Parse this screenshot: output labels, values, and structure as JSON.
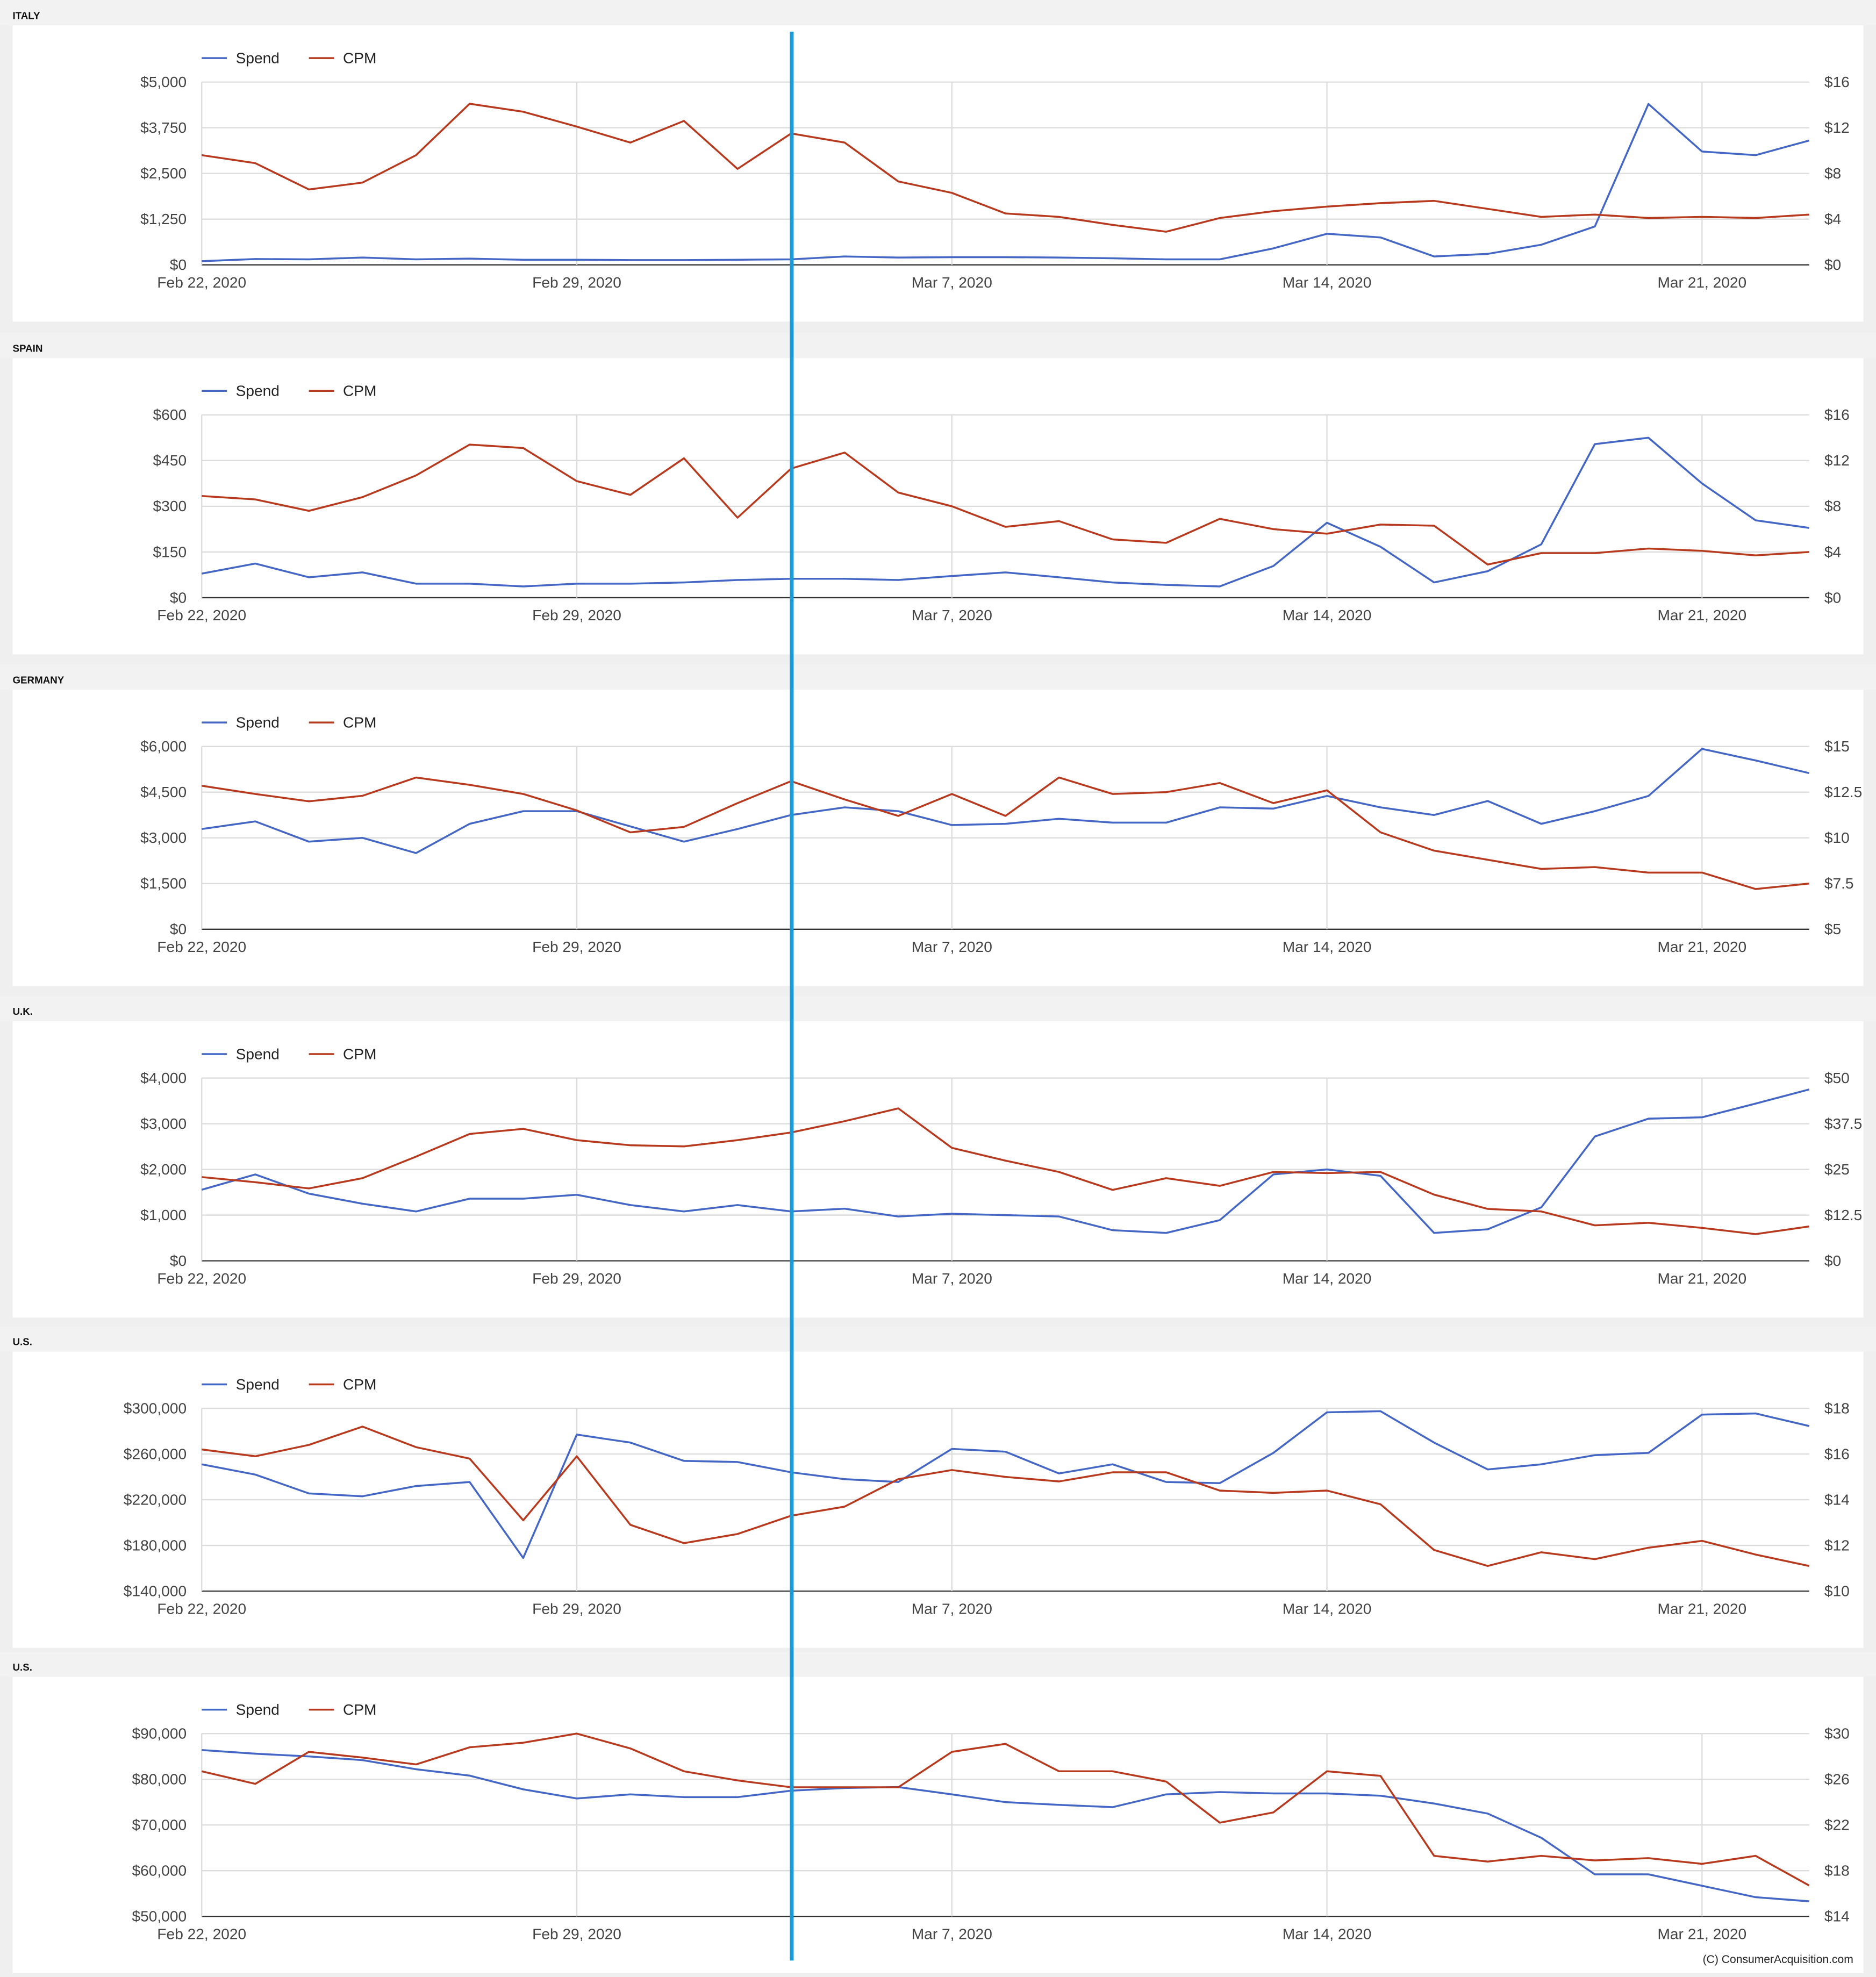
{
  "chart_data": [
    {
      "type": "line",
      "title": "ITALY",
      "legend": "top-left",
      "grid": true,
      "categories": [
        "Feb 22, 2020",
        null,
        null,
        null,
        null,
        null,
        null,
        "Feb 29, 2020",
        null,
        null,
        null,
        null,
        null,
        null,
        "Mar 7, 2020",
        null,
        null,
        null,
        null,
        null,
        null,
        "Mar 14, 2020",
        null,
        null,
        null,
        null,
        null,
        null,
        "Mar 21, 2020",
        null,
        null
      ],
      "series": [
        {
          "name": "Spend",
          "color": "#4466c4",
          "axis": "y",
          "values": [
            100,
            160,
            150,
            200,
            150,
            170,
            140,
            140,
            130,
            130,
            140,
            150,
            230,
            200,
            210,
            210,
            200,
            180,
            150,
            150,
            450,
            850,
            750,
            230,
            300,
            550,
            1050,
            4400,
            3100,
            3000,
            3400
          ]
        },
        {
          "name": "CPM",
          "color": "#b83a1e",
          "axis": "y2",
          "values": [
            9.6,
            8.9,
            6.6,
            7.2,
            9.6,
            14.1,
            13.4,
            12.1,
            10.7,
            12.6,
            8.4,
            11.5,
            10.7,
            7.3,
            6.3,
            4.5,
            4.2,
            3.5,
            2.9,
            4.1,
            4.7,
            5.1,
            5.4,
            5.6,
            4.9,
            4.2,
            4.4,
            4.1,
            4.2,
            4.1,
            4.4
          ]
        }
      ],
      "ylim": [
        0,
        5000
      ],
      "yticks": [
        {
          "value": 0,
          "label": "$0"
        },
        {
          "value": 1250,
          "label": "$1,250"
        },
        {
          "value": 2500,
          "label": "$2,500"
        },
        {
          "value": 3750,
          "label": "$3,750"
        },
        {
          "value": 5000,
          "label": "$5,000"
        }
      ],
      "y2lim": [
        0,
        16
      ],
      "y2ticks": [
        {
          "value": 0,
          "label": "$0"
        },
        {
          "value": 4,
          "label": "$4"
        },
        {
          "value": 8,
          "label": "$8"
        },
        {
          "value": 12,
          "label": "$12"
        },
        {
          "value": 16,
          "label": "$16"
        }
      ]
    },
    {
      "type": "line",
      "title": "SPAIN",
      "legend": "top-left",
      "grid": true,
      "categories": [
        "Feb 22, 2020",
        null,
        null,
        null,
        null,
        null,
        null,
        "Feb 29, 2020",
        null,
        null,
        null,
        null,
        null,
        null,
        "Mar 7, 2020",
        null,
        null,
        null,
        null,
        null,
        null,
        "Mar 14, 2020",
        null,
        null,
        null,
        null,
        null,
        null,
        "Mar 21, 2020",
        null,
        null
      ],
      "series": [
        {
          "name": "Spend",
          "color": "#4466c4",
          "axis": "y",
          "values": [
            79,
            112,
            67,
            83,
            46,
            46,
            37,
            46,
            46,
            50,
            58,
            62,
            62,
            58,
            71,
            83,
            67,
            50,
            42,
            37,
            104,
            246,
            167,
            50,
            87,
            175,
            504,
            525,
            375,
            254,
            229
          ]
        },
        {
          "name": "CPM",
          "color": "#b83a1e",
          "axis": "y2",
          "values": [
            8.9,
            8.6,
            7.6,
            8.8,
            10.7,
            13.4,
            13.1,
            10.2,
            9.0,
            12.2,
            7.0,
            11.3,
            12.7,
            9.2,
            8.0,
            6.2,
            6.7,
            5.1,
            4.8,
            6.9,
            6.0,
            5.6,
            6.4,
            6.3,
            2.9,
            3.9,
            3.9,
            4.3,
            4.1,
            3.7,
            4.0
          ]
        }
      ],
      "ylim": [
        0,
        600
      ],
      "yticks": [
        {
          "value": 0,
          "label": "$0"
        },
        {
          "value": 150,
          "label": "$150"
        },
        {
          "value": 300,
          "label": "$300"
        },
        {
          "value": 450,
          "label": "$450"
        },
        {
          "value": 600,
          "label": "$600"
        }
      ],
      "y2lim": [
        0,
        16
      ],
      "y2ticks": [
        {
          "value": 0,
          "label": "$0"
        },
        {
          "value": 4,
          "label": "$4"
        },
        {
          "value": 8,
          "label": "$8"
        },
        {
          "value": 12,
          "label": "$12"
        },
        {
          "value": 16,
          "label": "$16"
        }
      ]
    },
    {
      "type": "line",
      "title": "GERMANY",
      "legend": "top-left",
      "grid": true,
      "categories": [
        "Feb 22, 2020",
        null,
        null,
        null,
        null,
        null,
        null,
        "Feb 29, 2020",
        null,
        null,
        null,
        null,
        null,
        null,
        "Mar 7, 2020",
        null,
        null,
        null,
        null,
        null,
        null,
        "Mar 14, 2020",
        null,
        null,
        null,
        null,
        null,
        null,
        "Mar 21, 2020",
        null,
        null
      ],
      "series": [
        {
          "name": "Spend",
          "color": "#4466c4",
          "axis": "y",
          "values": [
            3290,
            3540,
            2875,
            3000,
            2500,
            3460,
            3875,
            3875,
            3375,
            2875,
            3290,
            3750,
            4000,
            3875,
            3420,
            3460,
            3625,
            3500,
            3500,
            4000,
            3960,
            4375,
            4000,
            3750,
            4210,
            3460,
            3875,
            4375,
            5920,
            5540,
            5125
          ]
        },
        {
          "name": "CPM",
          "color": "#b83a1e",
          "axis": "y2",
          "values": [
            12.85,
            12.4,
            12.0,
            12.3,
            13.3,
            12.9,
            12.4,
            11.5,
            10.3,
            10.6,
            11.9,
            13.1,
            12.1,
            11.2,
            12.4,
            11.2,
            13.3,
            12.4,
            12.5,
            13.0,
            11.9,
            12.6,
            10.3,
            9.3,
            8.8,
            8.3,
            8.4,
            8.1,
            8.1,
            7.2,
            7.5
          ]
        }
      ],
      "ylim": [
        0,
        6000
      ],
      "yticks": [
        {
          "value": 0,
          "label": "$0"
        },
        {
          "value": 1500,
          "label": "$1,500"
        },
        {
          "value": 3000,
          "label": "$3,000"
        },
        {
          "value": 4500,
          "label": "$4,500"
        },
        {
          "value": 6000,
          "label": "$6,000"
        }
      ],
      "y2lim": [
        5,
        15
      ],
      "y2ticks": [
        {
          "value": 5,
          "label": "$5"
        },
        {
          "value": 7.5,
          "label": "$7.5"
        },
        {
          "value": 10,
          "label": "$10"
        },
        {
          "value": 12.5,
          "label": "$12.5"
        },
        {
          "value": 15,
          "label": "$15"
        }
      ]
    },
    {
      "type": "line",
      "title": "U.K.",
      "legend": "top-left",
      "grid": true,
      "categories": [
        "Feb 22, 2020",
        null,
        null,
        null,
        null,
        null,
        null,
        "Feb 29, 2020",
        null,
        null,
        null,
        null,
        null,
        null,
        "Mar 7, 2020",
        null,
        null,
        null,
        null,
        null,
        null,
        "Mar 14, 2020",
        null,
        null,
        null,
        null,
        null,
        null,
        "Mar 21, 2020",
        null,
        null
      ],
      "series": [
        {
          "name": "Spend",
          "color": "#4466c4",
          "axis": "y",
          "values": [
            1555,
            1890,
            1470,
            1250,
            1080,
            1360,
            1360,
            1445,
            1220,
            1080,
            1220,
            1080,
            1140,
            970,
            1030,
            1000,
            970,
            670,
            610,
            890,
            1890,
            2000,
            1860,
            610,
            690,
            1170,
            2720,
            3110,
            3140,
            3440,
            3750
          ]
        },
        {
          "name": "CPM",
          "color": "#b83a1e",
          "axis": "y2",
          "values": [
            22.9,
            21.5,
            19.8,
            22.6,
            28.5,
            34.7,
            36.1,
            33.0,
            31.6,
            31.3,
            33.0,
            35.1,
            38.2,
            41.7,
            30.9,
            27.4,
            24.3,
            19.4,
            22.6,
            20.5,
            24.3,
            24.0,
            24.3,
            18.1,
            14.2,
            13.5,
            9.7,
            10.4,
            9.0,
            7.3,
            9.4
          ]
        }
      ],
      "ylim": [
        0,
        4000
      ],
      "yticks": [
        {
          "value": 0,
          "label": "$0"
        },
        {
          "value": 1000,
          "label": "$1,000"
        },
        {
          "value": 2000,
          "label": "$2,000"
        },
        {
          "value": 3000,
          "label": "$3,000"
        },
        {
          "value": 4000,
          "label": "$4,000"
        }
      ],
      "y2lim": [
        0,
        50
      ],
      "y2ticks": [
        {
          "value": 0,
          "label": "$0"
        },
        {
          "value": 12.5,
          "label": "$12.5"
        },
        {
          "value": 25,
          "label": "$25"
        },
        {
          "value": 37.5,
          "label": "$37.5"
        },
        {
          "value": 50,
          "label": "$50"
        }
      ]
    },
    {
      "type": "line",
      "title": "U.S.",
      "legend": "top-left",
      "grid": true,
      "categories": [
        "Feb 22, 2020",
        null,
        null,
        null,
        null,
        null,
        null,
        "Feb 29, 2020",
        null,
        null,
        null,
        null,
        null,
        null,
        "Mar 7, 2020",
        null,
        null,
        null,
        null,
        null,
        null,
        "Mar 14, 2020",
        null,
        null,
        null,
        null,
        null,
        null,
        "Mar 21, 2020",
        null,
        null
      ],
      "series": [
        {
          "name": "Spend",
          "color": "#4466c4",
          "axis": "y",
          "values": [
            251000,
            242000,
            225500,
            223000,
            232000,
            235500,
            169000,
            277000,
            270000,
            254000,
            253000,
            244000,
            238000,
            235500,
            264500,
            262000,
            243000,
            251000,
            235500,
            234500,
            261000,
            296500,
            297500,
            270000,
            246500,
            251000,
            259000,
            261000,
            294500,
            295500,
            284500
          ]
        },
        {
          "name": "CPM",
          "color": "#b83a1e",
          "axis": "y2",
          "values": [
            16.2,
            15.9,
            16.4,
            17.2,
            16.3,
            15.8,
            13.1,
            15.9,
            12.9,
            12.1,
            12.5,
            13.3,
            13.7,
            14.9,
            15.3,
            15.0,
            14.8,
            15.2,
            15.2,
            14.4,
            14.3,
            14.4,
            13.8,
            11.8,
            11.1,
            11.7,
            11.4,
            11.9,
            12.2,
            11.6,
            11.1
          ]
        }
      ],
      "ylim": [
        140000,
        300000
      ],
      "yticks": [
        {
          "value": 140000,
          "label": "$140,000"
        },
        {
          "value": 180000,
          "label": "$180,000"
        },
        {
          "value": 220000,
          "label": "$220,000"
        },
        {
          "value": 260000,
          "label": "$260,000"
        },
        {
          "value": 300000,
          "label": "$300,000"
        }
      ],
      "y2lim": [
        10,
        18
      ],
      "y2ticks": [
        {
          "value": 10,
          "label": "$10"
        },
        {
          "value": 12,
          "label": "$12"
        },
        {
          "value": 14,
          "label": "$14"
        },
        {
          "value": 16,
          "label": "$16"
        },
        {
          "value": 18,
          "label": "$18"
        }
      ]
    },
    {
      "type": "line",
      "title": "U.S.",
      "legend": "top-left",
      "grid": true,
      "categories": [
        "Feb 22, 2020",
        null,
        null,
        null,
        null,
        null,
        null,
        "Feb 29, 2020",
        null,
        null,
        null,
        null,
        null,
        null,
        "Mar 7, 2020",
        null,
        null,
        null,
        null,
        null,
        null,
        "Mar 14, 2020",
        null,
        null,
        null,
        null,
        null,
        null,
        "Mar 21, 2020",
        null,
        null
      ],
      "series": [
        {
          "name": "Spend",
          "color": "#4466c4",
          "axis": "y",
          "values": [
            86400,
            85600,
            85000,
            84200,
            82200,
            80800,
            77800,
            75800,
            76700,
            76100,
            76100,
            77500,
            78100,
            78300,
            76700,
            75000,
            74400,
            73900,
            76700,
            77200,
            76900,
            76900,
            76400,
            74700,
            72500,
            67200,
            59200,
            59200,
            56700,
            54200,
            53300
          ]
        },
        {
          "name": "CPM",
          "color": "#b83a1e",
          "axis": "y2",
          "values": [
            26.7,
            25.6,
            28.4,
            27.9,
            27.3,
            28.8,
            29.2,
            30.0,
            28.7,
            26.7,
            25.9,
            25.3,
            25.3,
            25.3,
            28.4,
            29.1,
            26.7,
            26.7,
            25.8,
            22.2,
            23.1,
            26.7,
            26.3,
            19.3,
            18.8,
            19.3,
            18.9,
            19.1,
            18.6,
            19.3,
            16.7
          ]
        }
      ],
      "ylim": [
        50000,
        90000
      ],
      "yticks": [
        {
          "value": 50000,
          "label": "$50,000"
        },
        {
          "value": 60000,
          "label": "$60,000"
        },
        {
          "value": 70000,
          "label": "$70,000"
        },
        {
          "value": 80000,
          "label": "$80,000"
        },
        {
          "value": 90000,
          "label": "$90,000"
        }
      ],
      "y2lim": [
        14,
        30
      ],
      "y2ticks": [
        {
          "value": 14,
          "label": "$14"
        },
        {
          "value": 18,
          "label": "$18"
        },
        {
          "value": 22,
          "label": "$22"
        },
        {
          "value": 26,
          "label": "$26"
        },
        {
          "value": 30,
          "label": "$30"
        }
      ]
    }
  ],
  "footer": "(C) ConsumerAcquisition.com"
}
